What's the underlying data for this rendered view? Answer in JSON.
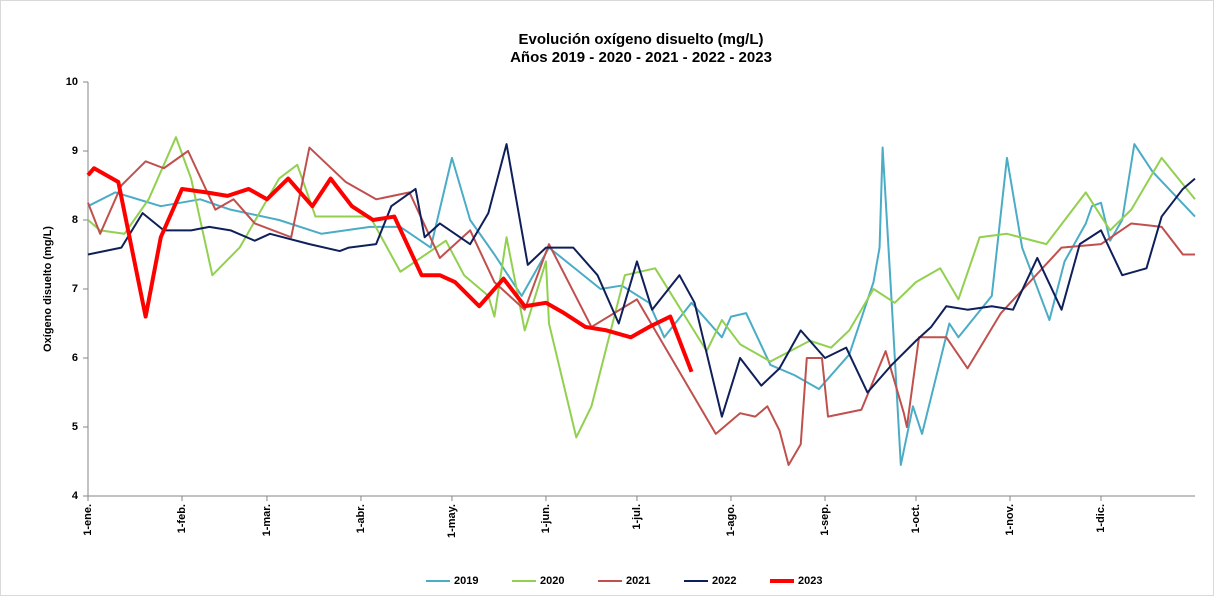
{
  "chart_data": {
    "type": "line",
    "title": "Evolución oxígeno disuelto (mg/L)",
    "subtitle": "Años 2019 - 2020 - 2021 - 2022 - 2023",
    "y_label": "Oxígeno disuelto (mg/L)",
    "xlim": [
      0,
      365
    ],
    "xticks": [
      {
        "value": 0,
        "label": "1-ene."
      },
      {
        "value": 31,
        "label": "1-feb."
      },
      {
        "value": 59,
        "label": "1-mar."
      },
      {
        "value": 90,
        "label": "1-abr."
      },
      {
        "value": 120,
        "label": "1-may."
      },
      {
        "value": 151,
        "label": "1-jun."
      },
      {
        "value": 181,
        "label": "1-jul."
      },
      {
        "value": 212,
        "label": "1-ago."
      },
      {
        "value": 243,
        "label": "1-sep."
      },
      {
        "value": 273,
        "label": "1-oct."
      },
      {
        "value": 304,
        "label": "1-nov."
      },
      {
        "value": 334,
        "label": "1-dic."
      }
    ],
    "ylim": [
      4,
      10
    ],
    "yticks": [
      4,
      5,
      6,
      7,
      8,
      9,
      10
    ],
    "grid": false,
    "legend": "bottom",
    "series": [
      {
        "name": "2019",
        "color": "#4bacc6",
        "width": 2,
        "x": [
          0,
          9,
          24,
          37,
          47,
          63,
          77,
          93,
          103,
          113,
          120,
          126,
          134,
          143,
          152,
          169,
          176,
          185,
          190,
          199,
          209,
          212,
          217,
          225,
          233,
          241,
          251,
          259,
          261,
          262,
          265,
          268,
          272,
          275,
          284,
          287,
          298,
          303,
          308,
          317,
          322,
          329,
          331,
          334,
          337,
          341,
          345,
          351,
          365
        ],
        "values": [
          8.2,
          8.4,
          8.2,
          8.3,
          8.15,
          8.0,
          7.8,
          7.9,
          7.9,
          7.6,
          8.9,
          8.0,
          7.5,
          6.9,
          7.6,
          7.0,
          7.05,
          6.8,
          6.3,
          6.8,
          6.3,
          6.6,
          6.65,
          5.9,
          5.75,
          5.55,
          6.05,
          7.1,
          7.6,
          9.05,
          6.8,
          4.45,
          5.3,
          4.9,
          6.5,
          6.3,
          6.9,
          8.9,
          7.6,
          6.55,
          7.4,
          7.95,
          8.2,
          8.25,
          7.7,
          8.0,
          9.1,
          8.7,
          8.05
        ]
      },
      {
        "name": "2020",
        "color": "#92d050",
        "width": 2,
        "x": [
          0,
          4,
          12,
          20,
          29,
          34,
          41,
          50,
          63,
          69,
          75,
          83,
          93,
          103,
          118,
          124,
          132,
          134,
          138,
          144,
          151,
          152,
          161,
          166,
          177,
          187,
          204,
          209,
          215,
          225,
          238,
          245,
          251,
          259,
          266,
          273,
          281,
          287,
          294,
          303,
          316,
          329,
          337,
          344,
          354,
          365
        ],
        "values": [
          8.0,
          7.85,
          7.8,
          8.3,
          9.2,
          8.6,
          7.2,
          7.6,
          8.6,
          8.8,
          8.05,
          8.05,
          8.05,
          7.25,
          7.7,
          7.2,
          6.9,
          6.6,
          7.75,
          6.4,
          7.4,
          6.5,
          4.85,
          5.3,
          7.2,
          7.3,
          6.1,
          6.55,
          6.2,
          5.95,
          6.25,
          6.15,
          6.4,
          7.0,
          6.8,
          7.1,
          7.3,
          6.85,
          7.75,
          7.8,
          7.65,
          8.4,
          7.85,
          8.15,
          8.9,
          8.3
        ]
      },
      {
        "name": "2021",
        "color": "#c0504d",
        "width": 2,
        "x": [
          0,
          4,
          11,
          19,
          25,
          33,
          42,
          48,
          55,
          67,
          73,
          85,
          95,
          106,
          116,
          126,
          134,
          144,
          152,
          166,
          181,
          195,
          207,
          215,
          220,
          224,
          228,
          231,
          235,
          237,
          242,
          244,
          255,
          263,
          269,
          270,
          274,
          283,
          290,
          301,
          321,
          334,
          344,
          354,
          361,
          365
        ],
        "values": [
          8.25,
          7.8,
          8.5,
          8.85,
          8.75,
          9.0,
          8.15,
          8.3,
          7.95,
          7.75,
          9.05,
          8.55,
          8.3,
          8.4,
          7.45,
          7.85,
          7.1,
          6.7,
          7.65,
          6.45,
          6.85,
          5.8,
          4.9,
          5.2,
          5.15,
          5.3,
          4.95,
          4.45,
          4.75,
          6.0,
          6.0,
          5.15,
          5.25,
          6.1,
          5.2,
          5.0,
          6.3,
          6.3,
          5.85,
          6.65,
          7.6,
          7.65,
          7.95,
          7.9,
          7.5,
          7.5
        ]
      },
      {
        "name": "2022",
        "color": "#0f1f5a",
        "width": 2,
        "x": [
          0,
          11,
          18,
          25,
          34,
          40,
          47,
          55,
          60,
          73,
          83,
          86,
          95,
          100,
          108,
          111,
          116,
          126,
          132,
          138,
          145,
          151,
          160,
          168,
          175,
          181,
          186,
          195,
          200,
          209,
          215,
          222,
          228,
          235,
          243,
          250,
          257,
          265,
          273,
          278,
          283,
          290,
          298,
          305,
          313,
          321,
          327,
          334,
          341,
          349,
          354,
          361,
          365
        ],
        "values": [
          7.5,
          7.6,
          8.1,
          7.85,
          7.85,
          7.9,
          7.85,
          7.7,
          7.8,
          7.65,
          7.55,
          7.6,
          7.65,
          8.2,
          8.45,
          7.75,
          7.95,
          7.65,
          8.1,
          9.1,
          7.35,
          7.6,
          7.6,
          7.2,
          6.5,
          7.4,
          6.7,
          7.2,
          6.8,
          5.15,
          6.0,
          5.6,
          5.85,
          6.4,
          6.0,
          6.15,
          5.5,
          5.9,
          6.25,
          6.45,
          6.75,
          6.7,
          6.75,
          6.7,
          7.45,
          6.7,
          7.65,
          7.85,
          7.2,
          7.3,
          8.05,
          8.45,
          8.6
        ]
      },
      {
        "name": "2023",
        "color": "#ff0000",
        "width": 4,
        "x": [
          0,
          2,
          10,
          19,
          24,
          31,
          39,
          46,
          53,
          59,
          66,
          74,
          80,
          87,
          94,
          101,
          110,
          116,
          121,
          129,
          137,
          144,
          151,
          157,
          164,
          171,
          179,
          185,
          192,
          199
        ],
        "values": [
          8.65,
          8.75,
          8.55,
          6.6,
          7.75,
          8.45,
          8.4,
          8.35,
          8.45,
          8.3,
          8.6,
          8.2,
          8.6,
          8.2,
          8.0,
          8.05,
          7.2,
          7.2,
          7.1,
          6.75,
          7.15,
          6.75,
          6.8,
          6.65,
          6.45,
          6.4,
          6.3,
          6.45,
          6.6,
          5.8
        ]
      }
    ]
  }
}
